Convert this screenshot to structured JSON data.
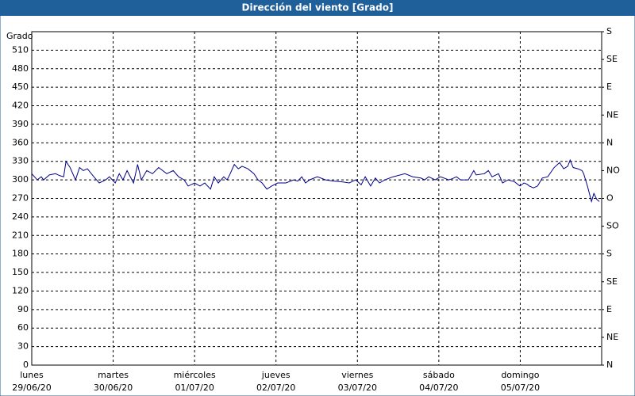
{
  "chart_data": {
    "type": "line",
    "title": "Dirección del viento [Grado]",
    "ylabel": "Grado",
    "color": "#00008b",
    "grid": true,
    "x": [
      0,
      1.6,
      2.8,
      3.5,
      5.2,
      7.0,
      8.2,
      9.4,
      10.1,
      11.3,
      12.9,
      14.1,
      15.2,
      16.4,
      18.3,
      19.9,
      21.8,
      22.9,
      24.6,
      25.8,
      26.9,
      28.1,
      30.0,
      31.2,
      32.3,
      33.9,
      35.6,
      37.4,
      39.8,
      41.7,
      43.3,
      44.9,
      46.1,
      48.0,
      49.6,
      51.0,
      52.7,
      53.8,
      55.0,
      56.6,
      57.6,
      58.5,
      59.7,
      60.9,
      62.0,
      63.7,
      65.5,
      66.7,
      67.9,
      69.3,
      70.7,
      72.5,
      74.9,
      77.2,
      78.4,
      79.6,
      80.7,
      81.9,
      84.2,
      86.6,
      88.9,
      91.3,
      93.6,
      95.5,
      97.1,
      98.3,
      99.9,
      101.3,
      102.5,
      104.1,
      106.5,
      110.0,
      112.3,
      114.7,
      115.8,
      117.0,
      118.9,
      120.5,
      122.9,
      124.0,
      125.2,
      126.4,
      128.7,
      130.3,
      131.0,
      133.4,
      134.6,
      135.7,
      137.6,
      138.8,
      140.4,
      142.3,
      143.9,
      145.1,
      146.0,
      146.7,
      147.9,
      149.1,
      150.5,
      152.1,
      154.0,
      155.6,
      156.8,
      158.0,
      158.7,
      159.6,
      161.0,
      162.2,
      162.7,
      163.8,
      165.0,
      165.7,
      166.6,
      167.3
    ],
    "values": [
      310,
      300,
      305,
      300,
      308,
      310,
      307,
      305,
      330,
      320,
      300,
      320,
      315,
      318,
      305,
      295,
      300,
      305,
      295,
      310,
      300,
      315,
      295,
      325,
      300,
      315,
      310,
      320,
      310,
      315,
      305,
      300,
      290,
      295,
      290,
      295,
      285,
      305,
      295,
      305,
      300,
      310,
      325,
      318,
      322,
      318,
      310,
      300,
      295,
      285,
      290,
      295,
      295,
      300,
      298,
      305,
      295,
      300,
      305,
      300,
      298,
      297,
      295,
      300,
      292,
      305,
      290,
      303,
      295,
      300,
      305,
      310,
      305,
      303,
      300,
      305,
      300,
      305,
      300,
      302,
      305,
      300,
      300,
      315,
      308,
      310,
      315,
      305,
      310,
      295,
      300,
      297,
      290,
      295,
      293,
      290,
      287,
      290,
      303,
      305,
      320,
      328,
      318,
      322,
      332,
      320,
      318,
      315,
      310,
      290,
      265,
      278,
      268,
      265
    ],
    "xlim": [
      0,
      168
    ],
    "xticks": [
      {
        "value": 0,
        "label": "lunes"
      },
      {
        "value": 24,
        "label": "martes"
      },
      {
        "value": 48,
        "label": "miércoles"
      },
      {
        "value": 72,
        "label": "jueves"
      },
      {
        "value": 96,
        "label": "viernes"
      },
      {
        "value": 120,
        "label": "sábado"
      },
      {
        "value": 144,
        "label": "domingo"
      }
    ],
    "xtick_sublabels": [
      "29/06/20",
      "30/06/20",
      "01/07/20",
      "02/07/20",
      "03/07/20",
      "04/07/20",
      "05/07/20"
    ],
    "ylim": [
      0,
      540
    ],
    "yticks": [
      0,
      30,
      60,
      90,
      120,
      150,
      180,
      210,
      240,
      270,
      300,
      330,
      360,
      390,
      420,
      450,
      480,
      510
    ],
    "y2lim": [
      0,
      540
    ],
    "y2ticks": [
      {
        "value": 0,
        "label": "N"
      },
      {
        "value": 45,
        "label": "NE"
      },
      {
        "value": 90,
        "label": "E"
      },
      {
        "value": 135,
        "label": "SE"
      },
      {
        "value": 180,
        "label": "S"
      },
      {
        "value": 225,
        "label": "SO"
      },
      {
        "value": 270,
        "label": "O"
      },
      {
        "value": 315,
        "label": "NO"
      },
      {
        "value": 360,
        "label": "N"
      },
      {
        "value": 405,
        "label": "NE"
      },
      {
        "value": 450,
        "label": "E"
      },
      {
        "value": 495,
        "label": "SE"
      },
      {
        "value": 540,
        "label": "S"
      }
    ]
  }
}
